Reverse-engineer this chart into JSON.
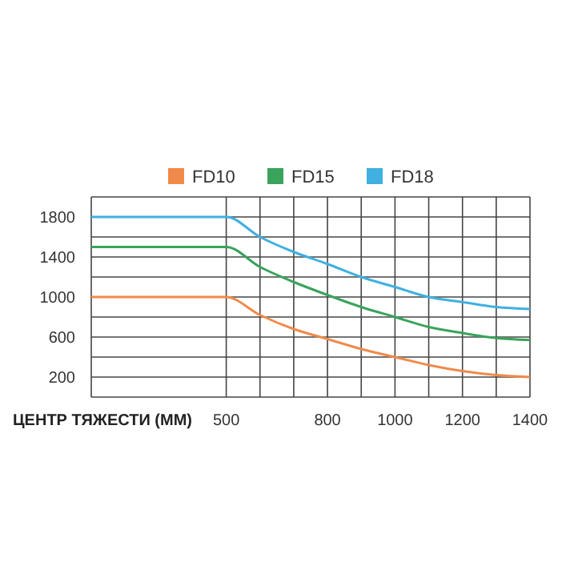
{
  "chart_data": {
    "type": "line",
    "xlabel": "ЦЕНТР ТЯЖЕСТИ (ММ)",
    "x": [
      100,
      500,
      600,
      700,
      800,
      900,
      1000,
      1100,
      1200,
      1300,
      1400
    ],
    "series": [
      {
        "name": "FD10",
        "color": "#f08a4b",
        "values": [
          1000,
          1000,
          820,
          680,
          580,
          480,
          400,
          320,
          260,
          220,
          200
        ]
      },
      {
        "name": "FD15",
        "color": "#3aa35c",
        "values": [
          1500,
          1500,
          1300,
          1150,
          1020,
          900,
          800,
          700,
          640,
          590,
          570
        ]
      },
      {
        "name": "FD18",
        "color": "#3fb0e0",
        "values": [
          1800,
          1800,
          1600,
          1450,
          1330,
          1200,
          1100,
          1000,
          950,
          900,
          880
        ]
      }
    ],
    "xlim": [
      100,
      1400
    ],
    "xticks": [
      500,
      {
        "value": 600,
        "label": null
      },
      {
        "value": 700,
        "label": null
      },
      800,
      {
        "value": 900,
        "label": null
      },
      1000,
      {
        "value": 1100,
        "label": null
      },
      1200,
      {
        "value": 1300,
        "label": null
      },
      1400
    ],
    "ylim": [
      0,
      2000
    ],
    "yticks": [
      200,
      {
        "value": 400,
        "label": null
      },
      600,
      {
        "value": 800,
        "label": null
      },
      1000,
      {
        "value": 1200,
        "label": null
      },
      1400,
      {
        "value": 1600,
        "label": null
      },
      1800,
      {
        "value": 2000,
        "label": null
      }
    ],
    "grid": true,
    "legend": "top",
    "marker": "none",
    "line_style": "solid"
  }
}
